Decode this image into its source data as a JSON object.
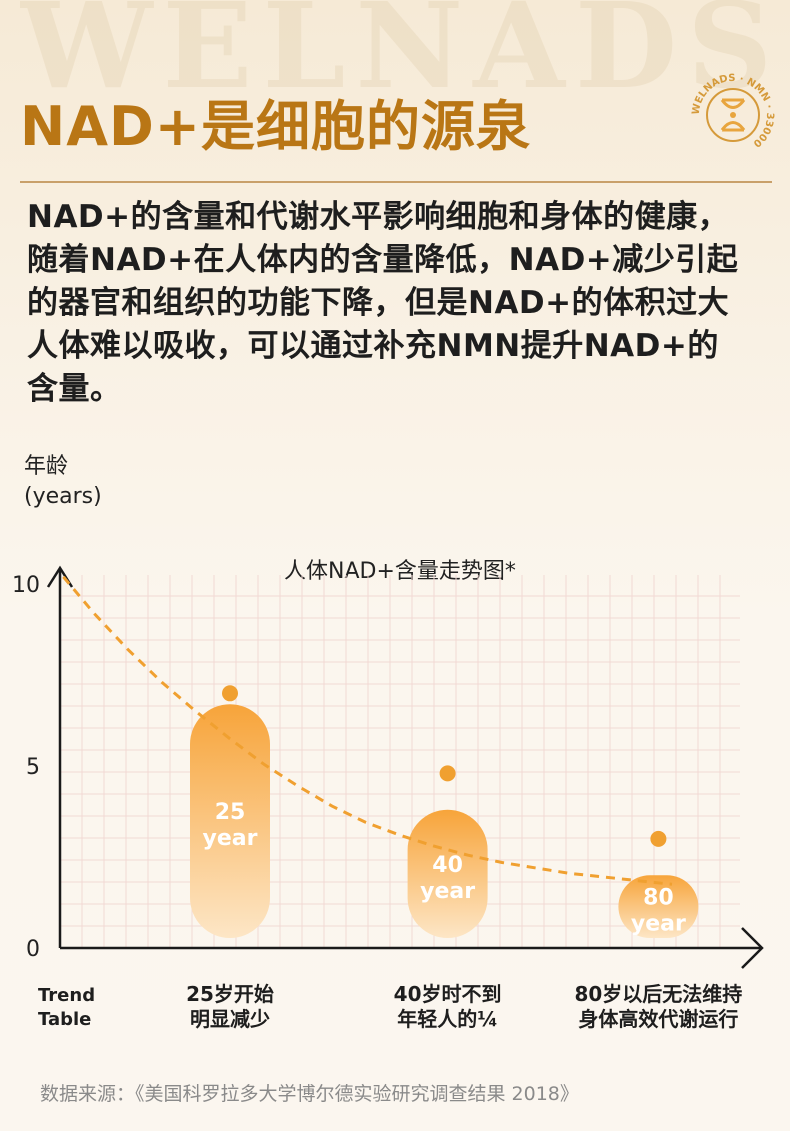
{
  "watermark": "WELNADS",
  "header": {
    "title": "NAD+是细胞的源泉",
    "seal_text": "WELNADS · NMN · 33000"
  },
  "description": {
    "lines": [
      "NAD+的含量和代谢水平影响细胞和身体的健康，",
      "随着NAD+在人体内的含量降低，NAD+减少引起",
      "的器官和组织的功能下降，但是NAD+的体积过大",
      "人体难以吸收，可以通过补充NMN提升NAD+的",
      "含量。"
    ]
  },
  "chart_data": {
    "type": "line",
    "title": "人体NAD+含量走势图*",
    "ylabel": [
      "年龄",
      "(years)"
    ],
    "ylim": [
      0,
      10
    ],
    "yticks": [
      0,
      5,
      10
    ],
    "corner_label": [
      "Trend",
      "Table"
    ],
    "curve": {
      "x": [
        0.5,
        5,
        10,
        15,
        20,
        25,
        30,
        35,
        40,
        45,
        50,
        55,
        60,
        65,
        70,
        75,
        80,
        85,
        90
      ],
      "y": [
        10.2,
        9.2,
        8.2,
        7.3,
        6.5,
        5.75,
        5.05,
        4.45,
        3.9,
        3.45,
        3.1,
        2.8,
        2.55,
        2.35,
        2.2,
        2.05,
        1.95,
        1.85,
        1.75
      ],
      "color": "#f0a030"
    },
    "points": [
      {
        "x": 25,
        "y": 7.0,
        "bar_value": 6.7,
        "label": [
          "25",
          "year"
        ],
        "caption": [
          "25岁开始",
          "明显减少"
        ]
      },
      {
        "x": 57,
        "y": 4.8,
        "bar_value": 3.8,
        "label": [
          "40",
          "year"
        ],
        "caption": [
          "40岁时不到",
          "年轻人的¼"
        ]
      },
      {
        "x": 88,
        "y": 3.0,
        "bar_value": 2.0,
        "label": [
          "80",
          "year"
        ],
        "caption": [
          "80岁以后无法维持",
          "身体高效代谢运行"
        ]
      }
    ],
    "xlim": [
      0,
      100
    ],
    "grid": true,
    "colors": {
      "bar_top": "#f7a43a",
      "bar_bottom": "#fde6c6",
      "axis": "#1a1a1a"
    }
  },
  "footer": {
    "source": "数据来源：《美国科罗拉多大学博尔德实验研究调查结果 2018》"
  }
}
